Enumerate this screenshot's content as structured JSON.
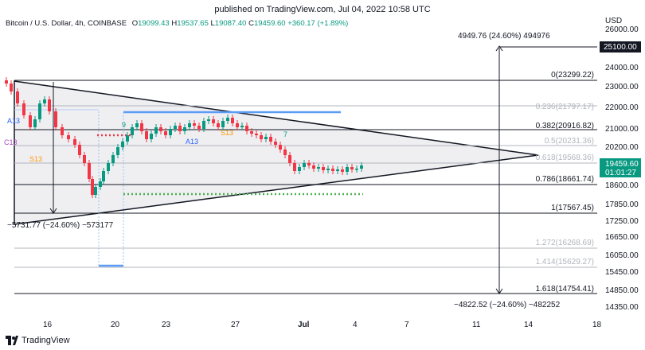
{
  "header": {
    "published": "published on TradingView.com, Jul 04, 2022 10:58 UTC",
    "symbol": "Bitcoin / U.S. Dollar, 4h, COINBASE",
    "o_key": "O",
    "o_val": "19099.43",
    "h_key": "H",
    "h_val": "19537.65",
    "l_key": "L",
    "l_val": "19087.40",
    "c_key": "C",
    "c_val": "19459.60",
    "change": "+360.17 (+1.89%)"
  },
  "axis": {
    "currency": "USD",
    "price_ticks": [
      "26000.00",
      "24000.00",
      "23000.00",
      "22000.00",
      "21000.00",
      "20200.00",
      "18600.00",
      "17850.00",
      "17250.00",
      "16650.00",
      "16050.00",
      "15450.00",
      "14850.00",
      "14350.00"
    ],
    "date_ticks": [
      "16",
      "20",
      "23",
      "27",
      "Jul",
      "4",
      "7",
      "11",
      "14",
      "18"
    ]
  },
  "badges": {
    "target_price": "25100.00",
    "current_price": "19459.60",
    "countdown": "01:01:27"
  },
  "fib_levels": [
    {
      "label": "0(23299.22)",
      "strong": true
    },
    {
      "label": "0.236(21797.17)",
      "strong": false
    },
    {
      "label": "0.382(20916.82)",
      "strong": true
    },
    {
      "label": "0.5(20231.36)",
      "strong": false
    },
    {
      "label": "0.618(19568.36)",
      "strong": false
    },
    {
      "label": "0.786(18661.74)",
      "strong": true
    },
    {
      "label": "1(17567.45)",
      "strong": true
    },
    {
      "label": "1.272(16268.69)",
      "strong": false
    },
    {
      "label": "1.414(15629.27)",
      "strong": false
    },
    {
      "label": "1.618(14754.41)",
      "strong": true
    }
  ],
  "measure": {
    "upper_text": "4949.76 (24.60%) 494976",
    "lower_text": "−4822.52 (−24.60%) −482252",
    "left_text": "−5731.77 (−24.60%) −573177"
  },
  "markers": {
    "a13_left": "A13",
    "a13_mid": "A13",
    "s13_left": "S13",
    "s13_mid": "S13",
    "c13": "C13",
    "nine": "9",
    "seven": "7"
  },
  "footer": {
    "brand": "TradingView"
  },
  "colors": {
    "up": "#089981",
    "down": "#f23645",
    "blue_line": "#5b9cf6",
    "green_dots": "#4caf50",
    "red_dots": "#f23645",
    "fib_strong": "#131722",
    "fib_weak": "#b2b5be"
  }
}
